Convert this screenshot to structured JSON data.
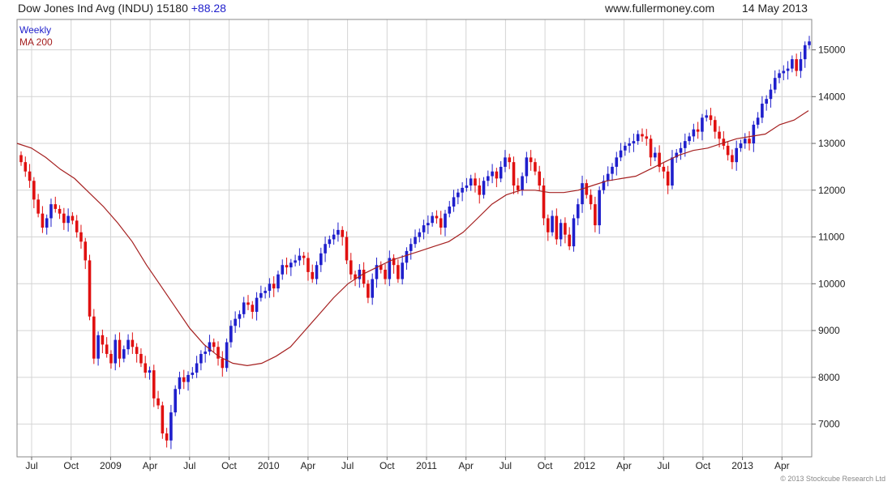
{
  "header": {
    "title": "Dow Jones Ind Avg (INDU) 15180",
    "change": "+88.28",
    "source": "www.fullermoney.com",
    "date": "14 May 2013"
  },
  "copyright": "© 2013 Stockcube Research Ltd",
  "colors": {
    "up": "#1f1fcc",
    "down": "#e01010",
    "ma": "#a52020",
    "grid": "#d4d4d4"
  },
  "chart_data": {
    "type": "candlestick",
    "title": "Dow Jones Ind Avg (INDU) 15180 +88.28",
    "legend": [
      {
        "name": "Weekly",
        "color": "#1f1fcc"
      },
      {
        "name": "MA 200",
        "color": "#a52020"
      }
    ],
    "legend_position": "top-left",
    "y_axis": {
      "position": "right",
      "ylim": [
        6300,
        15650
      ],
      "ticks": [
        7000,
        8000,
        9000,
        10000,
        11000,
        12000,
        13000,
        14000,
        15000
      ],
      "grid": true
    },
    "x_axis": {
      "ticks": [
        "Jul",
        "Oct",
        "2009",
        "Apr",
        "Jul",
        "Oct",
        "2010",
        "Apr",
        "Jul",
        "Oct",
        "2011",
        "Apr",
        "Jul",
        "Oct",
        "2012",
        "Apr",
        "Jul",
        "Oct",
        "2013",
        "Apr"
      ],
      "grid": true
    },
    "series": [
      {
        "name": "Weekly",
        "kind": "weekly-close",
        "values": [
          12600,
          12400,
          12200,
          11800,
          11500,
          11200,
          11400,
          11700,
          11600,
          11500,
          11300,
          11450,
          11350,
          11100,
          10900,
          10500,
          9300,
          8400,
          8900,
          8700,
          8500,
          8300,
          8800,
          8400,
          8600,
          8800,
          8650,
          8500,
          8300,
          8100,
          8150,
          7550,
          7400,
          6800,
          6650,
          7250,
          7750,
          8000,
          7900,
          8050,
          8100,
          8300,
          8500,
          8550,
          8750,
          8650,
          8400,
          8200,
          8750,
          9100,
          9250,
          9350,
          9600,
          9550,
          9400,
          9700,
          9800,
          9850,
          10000,
          9900,
          10200,
          10400,
          10350,
          10450,
          10500,
          10600,
          10550,
          10250,
          10100,
          10400,
          10650,
          10850,
          10950,
          11050,
          11150,
          11000,
          10500,
          10200,
          10100,
          10300,
          10000,
          9700,
          10100,
          10400,
          10300,
          10100,
          10550,
          10400,
          10100,
          10450,
          10700,
          10850,
          11000,
          11100,
          11250,
          11300,
          11450,
          11400,
          11200,
          11500,
          11650,
          11850,
          11950,
          12050,
          12100,
          12250,
          12100,
          11900,
          12200,
          12300,
          12400,
          12250,
          12500,
          12700,
          12600,
          12100,
          12000,
          12300,
          12700,
          12600,
          12400,
          12100,
          11400,
          11100,
          11450,
          10950,
          11300,
          11050,
          10800,
          11400,
          11700,
          12150,
          11900,
          11700,
          11250,
          12000,
          12200,
          12350,
          12500,
          12700,
          12850,
          12950,
          13000,
          13050,
          13200,
          13150,
          13100,
          12700,
          12800,
          12500,
          12400,
          12100,
          12700,
          12800,
          12900,
          13050,
          13150,
          13300,
          13250,
          13550,
          13600,
          13500,
          13250,
          13100,
          12950,
          12750,
          12600,
          12900,
          13000,
          13100,
          13000,
          13400,
          13550,
          13850,
          13950,
          14150,
          14400,
          14500,
          14550,
          14600,
          14800,
          14550,
          14800,
          15100,
          15180
        ]
      },
      {
        "name": "MA 200",
        "kind": "moving-average",
        "values": [
          13000,
          12900,
          12700,
          12450,
          12250,
          11950,
          11650,
          11300,
          10900,
          10400,
          9950,
          9500,
          9050,
          8700,
          8450,
          8300,
          8250,
          8300,
          8450,
          8650,
          9000,
          9350,
          9700,
          10000,
          10200,
          10350,
          10500,
          10600,
          10700,
          10800,
          10900,
          11100,
          11400,
          11700,
          11900,
          12000,
          12000,
          11950,
          11950,
          12000,
          12100,
          12200,
          12250,
          12300,
          12450,
          12600,
          12750,
          12850,
          12900,
          13000,
          13100,
          13150,
          13200,
          13400,
          13500,
          13700
        ]
      }
    ]
  }
}
